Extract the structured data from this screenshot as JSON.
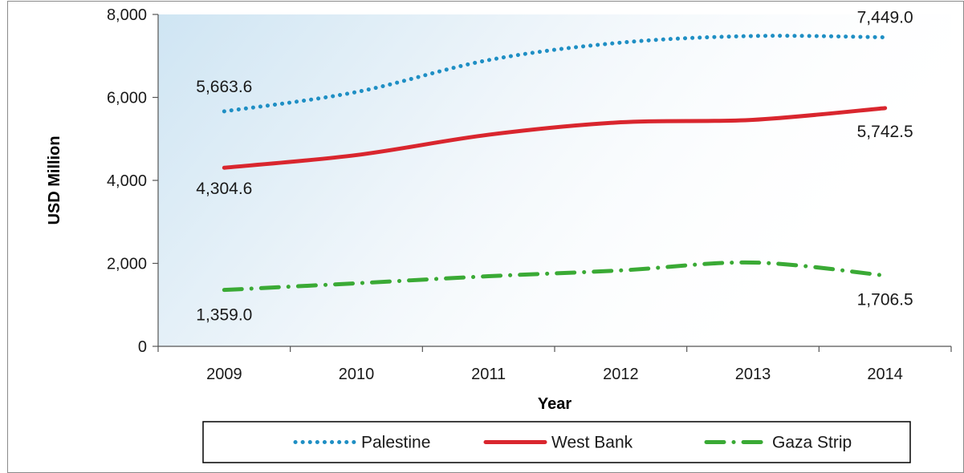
{
  "chart_data": {
    "type": "line",
    "categories": [
      "2009",
      "2010",
      "2011",
      "2012",
      "2013",
      "2014"
    ],
    "xlabel": "Year",
    "ylabel": "USD Million",
    "ylim": [
      0,
      8000
    ],
    "yticks": [
      0,
      2000,
      4000,
      6000,
      8000
    ],
    "ytick_labels": [
      "0",
      "2,000",
      "4,000",
      "6,000",
      "8,000"
    ],
    "grid": false,
    "legend_position": "bottom",
    "series": [
      {
        "name": "Palestine",
        "values": [
          5663.6,
          6130,
          6900,
          7320,
          7480,
          7449.0
        ],
        "color": "#1f8fc4",
        "style": "dotted",
        "labels": [
          {
            "index": 0,
            "text": "5,663.6"
          },
          {
            "index": 5,
            "text": "7,449.0"
          }
        ]
      },
      {
        "name": "West Bank",
        "values": [
          4304.6,
          4610,
          5100,
          5400,
          5460,
          5742.5
        ],
        "color": "#d9262e",
        "style": "solid",
        "labels": [
          {
            "index": 0,
            "text": "4,304.6"
          },
          {
            "index": 5,
            "text": "5,742.5"
          }
        ]
      },
      {
        "name": "Gaza Strip",
        "values": [
          1359.0,
          1520,
          1690,
          1830,
          2020,
          1706.5
        ],
        "color": "#3aaa35",
        "style": "dashdot",
        "labels": [
          {
            "index": 0,
            "text": "1,359.0"
          },
          {
            "index": 5,
            "text": "1,706.5"
          }
        ]
      }
    ]
  }
}
